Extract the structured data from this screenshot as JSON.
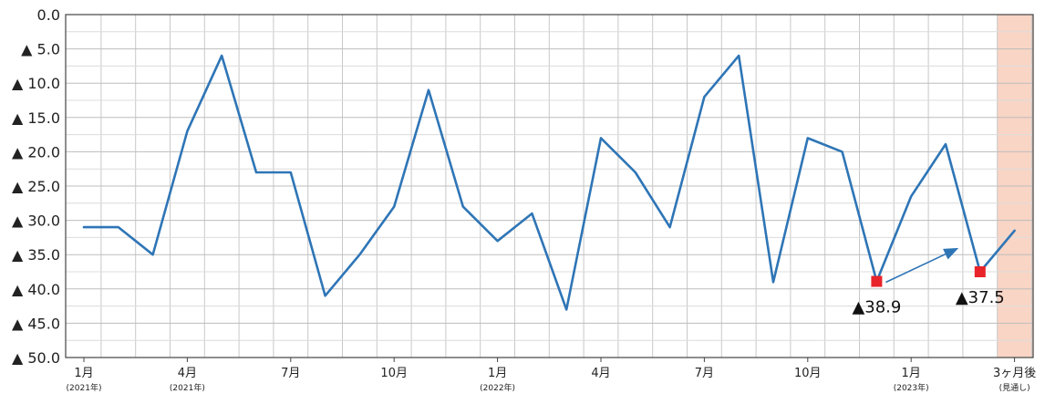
{
  "chart_data": {
    "type": "line",
    "title": "",
    "xlabel": "",
    "ylabel": "",
    "ylim": [
      0,
      50
    ],
    "y_inverted": true,
    "grid": true,
    "y_ticks": [
      "0.0",
      "▲ 5.0",
      "▲ 10.0",
      "▲ 15.0",
      "▲ 20.0",
      "▲ 25.0",
      "▲ 30.0",
      "▲ 35.0",
      "▲ 40.0",
      "▲ 45.0",
      "▲ 50.0"
    ],
    "x_tick_labels": [
      {
        "index": 0,
        "label": "1月",
        "sub": "(2021年)"
      },
      {
        "index": 3,
        "label": "4月",
        "sub": "(2021年)"
      },
      {
        "index": 6,
        "label": "7月",
        "sub": ""
      },
      {
        "index": 9,
        "label": "10月",
        "sub": ""
      },
      {
        "index": 12,
        "label": "1月",
        "sub": "(2022年)"
      },
      {
        "index": 15,
        "label": "4月",
        "sub": ""
      },
      {
        "index": 18,
        "label": "7月",
        "sub": ""
      },
      {
        "index": 21,
        "label": "10月",
        "sub": ""
      },
      {
        "index": 24,
        "label": "1月",
        "sub": "(2023年)"
      },
      {
        "index": 27,
        "label": "3ヶ月後",
        "sub": "(見通し)"
      }
    ],
    "series": [
      {
        "values": [
          -31,
          -31,
          -35,
          -17,
          -6,
          -23,
          -23,
          -41,
          -35,
          -28,
          -11,
          -28,
          -33,
          -29,
          -43,
          -18,
          -23,
          -31,
          -12,
          -6,
          -39,
          -18,
          -20,
          -38.9,
          -26.5,
          -18.9,
          -37.5,
          -31.5
        ],
        "color": "#2e75b6"
      }
    ],
    "forecast_index": 27,
    "forecast_color": "#f9d5c5",
    "highlights": [
      {
        "index": 23,
        "value": -38.9,
        "label": "▲38.9"
      },
      {
        "index": 26,
        "value": -37.5,
        "label": "▲37.5"
      }
    ],
    "marker_color": "#e8232a",
    "arrow": {
      "from_index": 23,
      "to_index": 25.3
    }
  }
}
